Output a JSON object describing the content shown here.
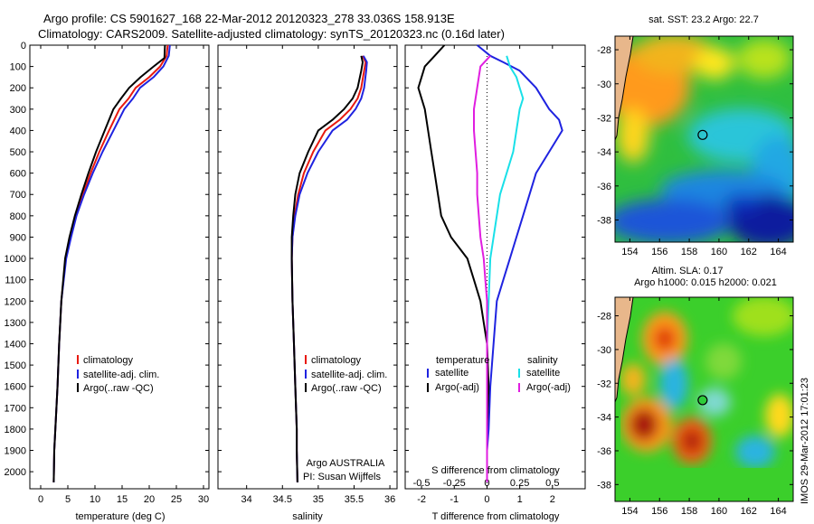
{
  "figure": {
    "title_line1": "Argo profile: CS 5901627_168 22-Mar-2012 20120323_278 33.036S 158.913E",
    "title_line2": "Climatology: CARS2009. Satellite-adjusted climatology: synTS_20120323.nc (0.16d later)",
    "side_stamp": "IMOS 29-Mar-2012 17:01:23",
    "argo_note_1": "Argo AUSTRALIA",
    "argo_note_2": "PI: Susan Wijffels"
  },
  "colors": {
    "climatology": "#e8190f",
    "satellite": "#1f23e0",
    "argo": "#000000",
    "s_satellite": "#19e0e8",
    "s_argo": "#e01ee0",
    "land": "#e8b78b"
  },
  "chart_data": [
    {
      "type": "line",
      "id": "temperature",
      "xlabel": "temperature (deg C)",
      "xlim": [
        -2,
        31
      ],
      "xticks": [
        0,
        5,
        10,
        15,
        20,
        25,
        30
      ],
      "ylim": [
        2080,
        0
      ],
      "yticks": [
        0,
        100,
        200,
        300,
        400,
        500,
        600,
        700,
        800,
        900,
        1000,
        1100,
        1200,
        1300,
        1400,
        1500,
        1600,
        1700,
        1800,
        1900,
        2000
      ],
      "legend": [
        "climatology",
        "satellite-adj. clim.",
        "Argo(..raw -QC)"
      ],
      "series": [
        {
          "name": "climatology",
          "color_key": "climatology",
          "x": [
            23.4,
            23.2,
            22.0,
            20.0,
            17.5,
            16.2,
            14.5,
            12.6,
            10.8,
            9.2,
            7.8,
            6.5,
            5.5,
            4.6,
            3.8,
            3.4,
            3.1,
            2.9,
            2.7,
            2.5,
            2.4
          ],
          "y": [
            0,
            50,
            100,
            150,
            200,
            250,
            300,
            400,
            500,
            600,
            700,
            800,
            900,
            1000,
            1200,
            1400,
            1600,
            1700,
            1800,
            1900,
            2050
          ]
        },
        {
          "name": "satellite-adj. clim.",
          "color_key": "satellite",
          "x": [
            23.8,
            23.6,
            22.6,
            20.8,
            18.3,
            17.0,
            15.4,
            13.4,
            11.4,
            9.6,
            8.0,
            6.6,
            5.6,
            4.7,
            3.8,
            3.4,
            3.1,
            2.9,
            2.7,
            2.5,
            2.4
          ],
          "y": [
            0,
            50,
            100,
            150,
            200,
            250,
            300,
            400,
            500,
            600,
            700,
            800,
            900,
            1000,
            1200,
            1400,
            1600,
            1700,
            1800,
            1900,
            2050
          ]
        },
        {
          "name": "Argo(..raw -QC)",
          "color_key": "argo",
          "x": [
            22.9,
            22.8,
            20.8,
            18.4,
            16.3,
            14.8,
            13.4,
            11.8,
            10.2,
            8.8,
            7.5,
            6.3,
            5.3,
            4.5,
            3.8,
            3.4,
            3.1,
            2.9,
            2.7,
            2.5,
            2.4
          ],
          "y": [
            0,
            60,
            100,
            150,
            200,
            250,
            300,
            400,
            500,
            600,
            700,
            800,
            900,
            1000,
            1200,
            1400,
            1600,
            1700,
            1800,
            1900,
            2050
          ]
        }
      ]
    },
    {
      "type": "line",
      "id": "salinity",
      "xlabel": "salinity",
      "xlim": [
        33.6,
        36.1
      ],
      "xticks": [
        34,
        34.5,
        35,
        35.5,
        36
      ],
      "xtick_labels": [
        "34",
        "34.5",
        "35",
        "35.5",
        "36"
      ],
      "ylim": [
        2080,
        0
      ],
      "legend": [
        "climatology",
        "satellite-adj. clim.",
        "Argo(..raw -QC)"
      ],
      "series": [
        {
          "name": "climatology",
          "color_key": "climatology",
          "x": [
            35.62,
            35.66,
            35.64,
            35.6,
            35.55,
            35.45,
            35.3,
            35.1,
            34.93,
            34.8,
            34.72,
            34.67,
            34.64,
            34.63,
            34.64,
            34.66,
            34.68,
            34.69,
            34.7,
            34.7,
            34.71
          ],
          "y": [
            50,
            80,
            120,
            200,
            250,
            300,
            350,
            400,
            500,
            600,
            700,
            800,
            900,
            1000,
            1200,
            1400,
            1600,
            1700,
            1800,
            1900,
            2050
          ]
        },
        {
          "name": "satellite-adj. clim.",
          "color_key": "satellite",
          "x": [
            35.63,
            35.68,
            35.67,
            35.64,
            35.6,
            35.52,
            35.4,
            35.2,
            35.0,
            34.85,
            34.74,
            34.68,
            34.64,
            34.63,
            34.64,
            34.66,
            34.68,
            34.69,
            34.7,
            34.7,
            34.71
          ],
          "y": [
            50,
            80,
            120,
            200,
            250,
            300,
            350,
            400,
            500,
            600,
            700,
            800,
            900,
            1000,
            1200,
            1400,
            1600,
            1700,
            1800,
            1900,
            2050
          ]
        },
        {
          "name": "Argo(..raw -QC)",
          "color_key": "argo",
          "x": [
            35.6,
            35.62,
            35.6,
            35.55,
            35.48,
            35.36,
            35.2,
            35.0,
            34.86,
            34.74,
            34.68,
            34.65,
            34.63,
            34.63,
            34.64,
            34.66,
            34.68,
            34.69,
            34.7,
            34.7,
            34.71
          ],
          "y": [
            50,
            80,
            120,
            200,
            250,
            300,
            350,
            400,
            500,
            600,
            700,
            800,
            900,
            1000,
            1200,
            1400,
            1600,
            1700,
            1800,
            1900,
            2050
          ]
        }
      ]
    },
    {
      "type": "line",
      "id": "difference",
      "xlabel": "T difference from climatology",
      "top_axis_label": "S difference from climatology",
      "xlim": [
        -2.5,
        3.0
      ],
      "xticks": [
        -2,
        -1,
        0,
        1,
        2
      ],
      "xtick_labels": [
        "-2",
        "-1",
        "0",
        "1",
        "2"
      ],
      "top_xticks": [
        -0.5,
        -0.25,
        0,
        0.25,
        0.5
      ],
      "top_xtick_labels": [
        "-0.5",
        "-0.25",
        "0",
        "0.25",
        "0.5"
      ],
      "top_scale": 4,
      "ylim": [
        2080,
        0
      ],
      "legend_groups": [
        {
          "title": "temperature",
          "items": [
            "satellite",
            "Argo(-adj)"
          ]
        },
        {
          "title": "salinity",
          "items": [
            "satellite",
            "Argo(-adj)"
          ]
        }
      ],
      "series": [
        {
          "name": "satellite",
          "group": "temperature",
          "color_key": "satellite",
          "x": [
            -0.3,
            0.1,
            0.5,
            1.0,
            1.5,
            1.9,
            2.2,
            2.3,
            1.9,
            1.5,
            1.3,
            1.1,
            0.9,
            0.7,
            0.5,
            0.3,
            0.2,
            0.1,
            0.05,
            0.0,
            0.0
          ],
          "y": [
            0,
            50,
            80,
            120,
            200,
            300,
            350,
            400,
            500,
            600,
            700,
            800,
            900,
            1000,
            1100,
            1200,
            1400,
            1600,
            1800,
            1900,
            2050
          ]
        },
        {
          "name": "Argo(-adj)",
          "group": "temperature",
          "color_key": "argo",
          "x": [
            -1.3,
            -1.6,
            -1.9,
            -2.0,
            -2.1,
            -1.9,
            -1.8,
            -1.7,
            -1.6,
            -1.5,
            -1.4,
            -1.1,
            -0.6,
            -0.4,
            -0.2,
            -0.1,
            0.0,
            0.05,
            0.0,
            0.0,
            0.0
          ],
          "y": [
            0,
            50,
            100,
            150,
            200,
            300,
            400,
            500,
            600,
            700,
            800,
            900,
            1000,
            1100,
            1200,
            1300,
            1400,
            1600,
            1800,
            1900,
            2050
          ]
        },
        {
          "name": "satellite",
          "group": "salinity",
          "color_key": "s_satellite",
          "x": [
            0.6,
            0.7,
            0.9,
            1.0,
            1.1,
            1.0,
            0.9,
            0.8,
            0.6,
            0.4,
            0.3,
            0.2,
            0.1,
            0.05,
            0.0,
            0.0,
            0.0,
            0.0
          ],
          "y": [
            50,
            100,
            150,
            200,
            250,
            300,
            400,
            500,
            600,
            700,
            800,
            900,
            1000,
            1200,
            1400,
            1600,
            1800,
            2050
          ]
        },
        {
          "name": "Argo(-adj)",
          "group": "salinity",
          "color_key": "s_argo",
          "x": [
            0.1,
            -0.2,
            -0.3,
            -0.4,
            -0.4,
            -0.35,
            -0.3,
            -0.3,
            -0.25,
            -0.2,
            -0.1,
            -0.05,
            0.0,
            0.0,
            0.0
          ],
          "y": [
            50,
            100,
            200,
            300,
            400,
            500,
            600,
            700,
            800,
            900,
            1000,
            1100,
            1200,
            1600,
            2050
          ]
        }
      ]
    },
    {
      "type": "heatmap",
      "id": "sst-map",
      "title": "sat. SST: 23.2  Argo: 22.7",
      "xlim": [
        153,
        165
      ],
      "ylim": [
        -39.3,
        -27.2
      ],
      "xticks": [
        154,
        156,
        158,
        160,
        162,
        164
      ],
      "yticks": [
        -28,
        -30,
        -32,
        -34,
        -36,
        -38
      ],
      "marker": {
        "lon": 158.9,
        "lat": -33.0
      }
    },
    {
      "type": "heatmap",
      "id": "sla-map",
      "title_line1": "Altim. SLA: 0.17",
      "title_line2": "Argo h1000: 0.015 h2000: 0.021",
      "xlim": [
        153,
        165
      ],
      "ylim": [
        -39.0,
        -26.9
      ],
      "xticks": [
        154,
        156,
        158,
        160,
        162,
        164
      ],
      "yticks": [
        -28,
        -30,
        -32,
        -34,
        -36,
        -38
      ],
      "marker": {
        "lon": 158.9,
        "lat": -33.0
      }
    }
  ]
}
